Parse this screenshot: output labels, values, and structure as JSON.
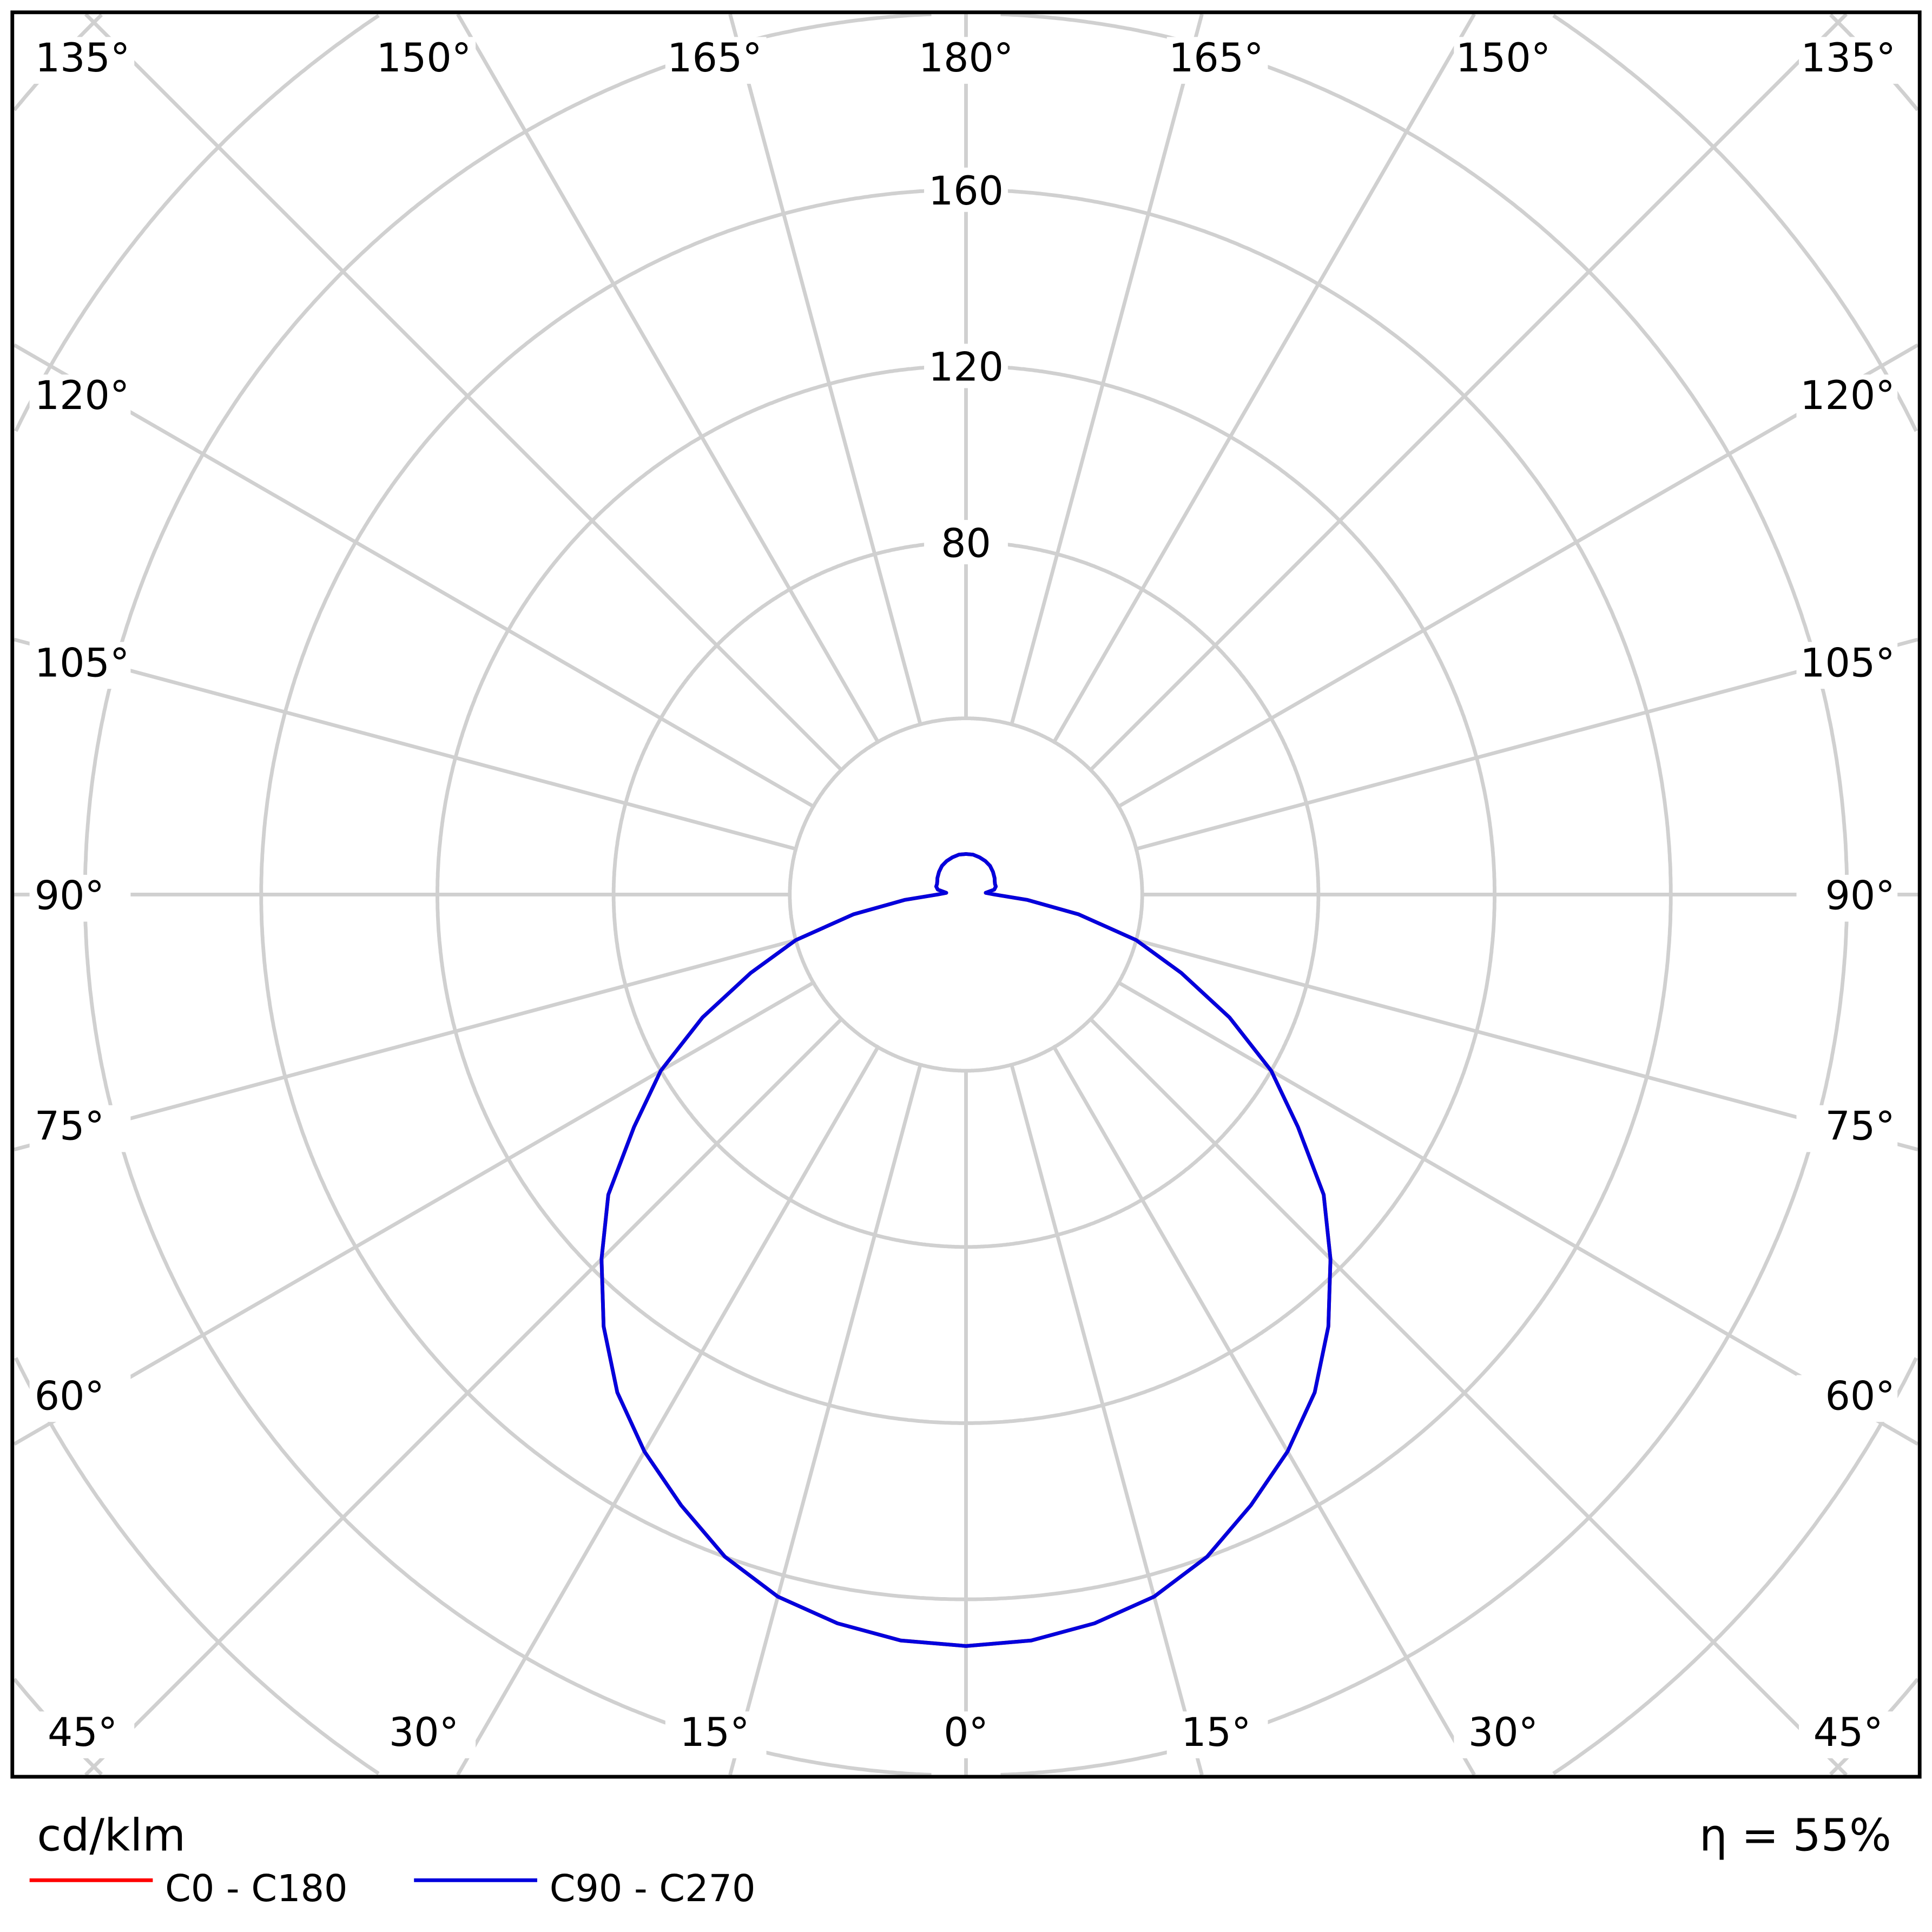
{
  "chart_data": {
    "type": "polar",
    "unit_label": "cd/klm",
    "efficiency_label": "η = 55%",
    "radial_ticks": [
      "80",
      "120",
      "160"
    ],
    "radial_grid_values": [
      40,
      80,
      120,
      160,
      200,
      240,
      280
    ],
    "radial_max_shown": 160,
    "angle_step_deg": 15,
    "angle_labels": {
      "top": [
        "135°",
        "150°",
        "165°",
        "180°",
        "165°",
        "150°",
        "135°"
      ],
      "left": [
        "120°",
        "105°",
        "90°",
        "75°",
        "60°"
      ],
      "right": [
        "120°",
        "105°",
        "90°",
        "75°",
        "60°"
      ],
      "bottom": [
        "45°",
        "30°",
        "15°",
        "0°",
        "15°",
        "30°",
        "45°"
      ]
    },
    "grid": true,
    "legend_position": "bottom-left",
    "gamma_deg": [
      0,
      5,
      10,
      15,
      20,
      25,
      30,
      35,
      40,
      45,
      50,
      55,
      60,
      65,
      70,
      75,
      80,
      85,
      90,
      95,
      100,
      105,
      110,
      115,
      120,
      130,
      140,
      150,
      160,
      170,
      180
    ],
    "series": [
      {
        "name": "C0 - C180",
        "color": "#ff0000",
        "values": [
          170.6,
          170,
          168,
          165,
          160,
          153,
          146,
          138,
          128,
          117,
          106,
          92,
          80,
          66,
          52,
          40,
          26,
          14,
          6.5,
          4.5,
          6.5,
          7,
          7,
          7.2,
          7.5,
          8,
          8.5,
          8.8,
          9,
          9.2,
          9.2
        ]
      },
      {
        "name": "C90 - C270",
        "color": "#0000dd",
        "values": [
          170.6,
          170,
          168,
          165,
          160,
          153,
          146,
          138,
          128,
          117,
          106,
          92,
          80,
          66,
          52,
          40,
          26,
          14,
          6.5,
          4.5,
          6.5,
          7,
          7,
          7.2,
          7.5,
          8,
          8.5,
          8.8,
          9,
          9.2,
          9.2
        ]
      }
    ]
  }
}
